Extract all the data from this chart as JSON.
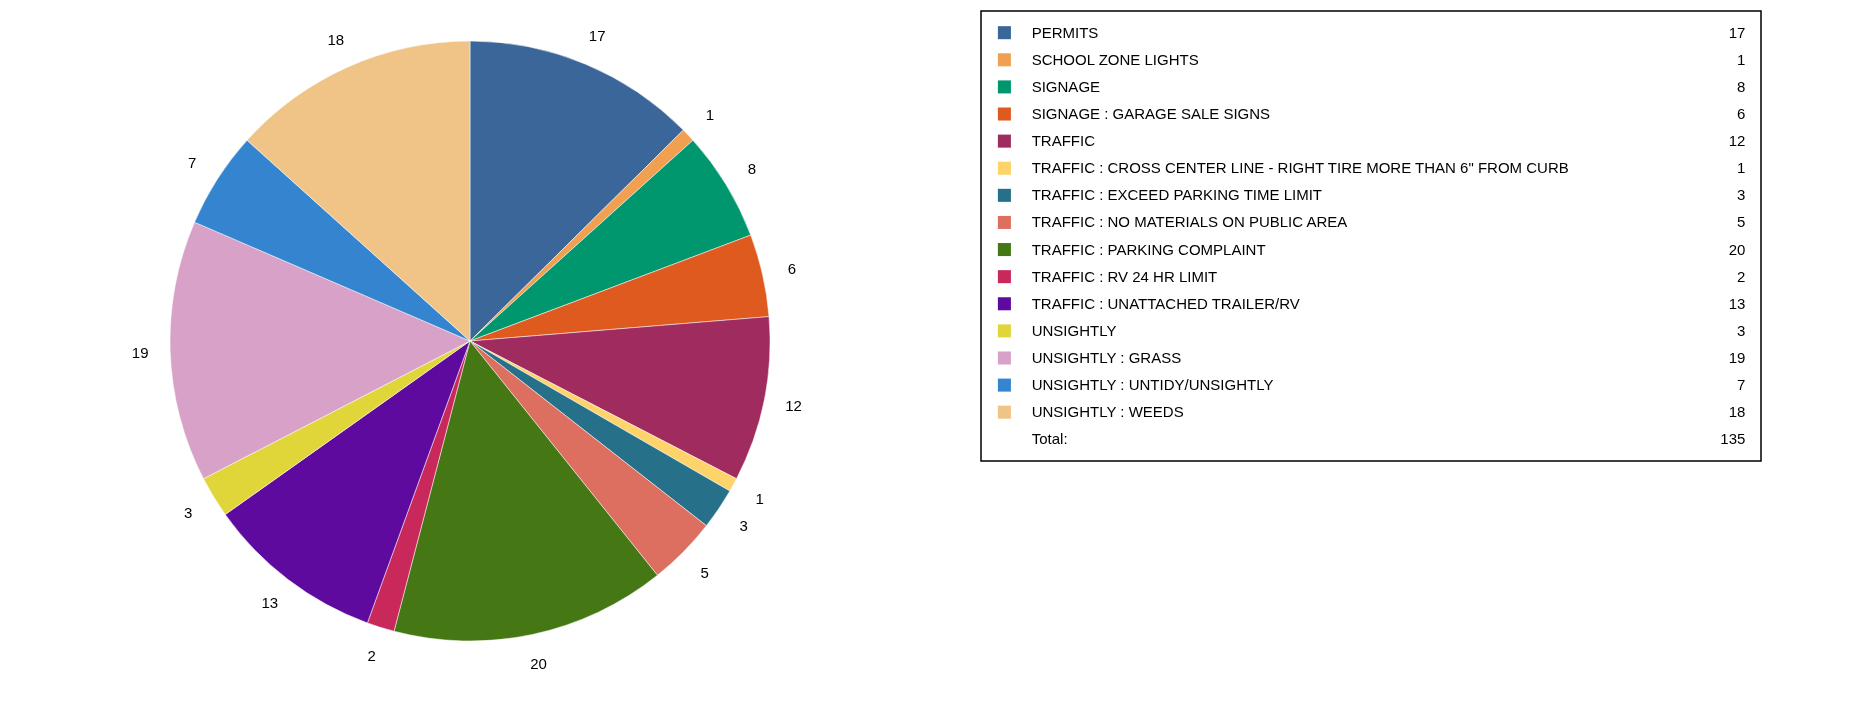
{
  "chart_data": {
    "type": "pie",
    "categories": [
      "PERMITS",
      "SCHOOL ZONE LIGHTS",
      "SIGNAGE",
      "SIGNAGE : GARAGE SALE SIGNS",
      "TRAFFIC",
      "TRAFFIC : CROSS CENTER LINE - RIGHT TIRE MORE THAN 6\" FROM CURB",
      "TRAFFIC : EXCEED PARKING TIME LIMIT",
      "TRAFFIC : NO MATERIALS ON PUBLIC AREA",
      "TRAFFIC : PARKING COMPLAINT",
      "TRAFFIC : RV 24 HR LIMIT",
      "TRAFFIC : UNATTACHED TRAILER/RV",
      "UNSIGHTLY",
      "UNSIGHTLY : GRASS",
      "UNSIGHTLY : UNTIDY/UNSIGHTLY",
      "UNSIGHTLY : WEEDS"
    ],
    "values": [
      17,
      1,
      8,
      6,
      12,
      1,
      3,
      5,
      20,
      2,
      13,
      3,
      19,
      7,
      18
    ],
    "colors": [
      "#3a6699",
      "#f0a050",
      "#00966e",
      "#de5a1e",
      "#a02b5e",
      "#fdd36a",
      "#267089",
      "#dd6f60",
      "#457714",
      "#c8295a",
      "#5e0a9e",
      "#e0d63a",
      "#d8a2c8",
      "#3584d0",
      "#f0c387"
    ],
    "data_labels": true,
    "legend": "right",
    "annotations": [
      "17",
      "1",
      "8",
      "6",
      "12",
      "1",
      "3",
      "5",
      "20",
      "2",
      "13",
      "3",
      "19",
      "7",
      "18",
      "Total: 135"
    ]
  }
}
